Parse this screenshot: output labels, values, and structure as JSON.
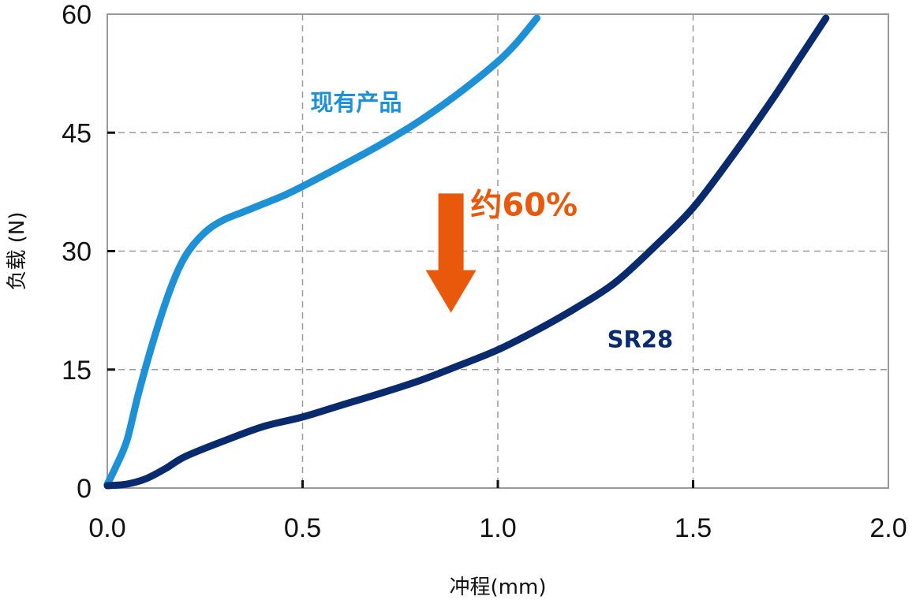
{
  "chart_data": {
    "type": "line",
    "title": "",
    "xlabel": "冲程(mm)",
    "ylabel": "负载 (N)",
    "xlim": [
      0,
      2.0
    ],
    "ylim": [
      0,
      60
    ],
    "x_ticks": [
      0,
      0.5,
      1.0,
      1.5,
      2.0
    ],
    "x_tick_labels": [
      "0.0",
      "0.5",
      "1.0",
      "1.5",
      "2.0"
    ],
    "y_ticks": [
      0,
      15,
      30,
      45,
      60
    ],
    "y_tick_labels": [
      "0",
      "15",
      "30",
      "45",
      "60"
    ],
    "grid": true,
    "series": [
      {
        "name": "现有产品",
        "color": "#1e90d6",
        "points": [
          [
            0,
            0.5
          ],
          [
            0.02,
            2.5
          ],
          [
            0.05,
            6
          ],
          [
            0.08,
            12
          ],
          [
            0.12,
            19
          ],
          [
            0.16,
            25
          ],
          [
            0.19,
            28.5
          ],
          [
            0.22,
            30.8
          ],
          [
            0.26,
            32.8
          ],
          [
            0.3,
            34
          ],
          [
            0.35,
            35
          ],
          [
            0.4,
            36
          ],
          [
            0.45,
            37
          ],
          [
            0.5,
            38.2
          ],
          [
            0.6,
            40.8
          ],
          [
            0.7,
            43.5
          ],
          [
            0.8,
            46.5
          ],
          [
            0.9,
            50
          ],
          [
            1.0,
            54
          ],
          [
            1.05,
            56.5
          ],
          [
            1.1,
            59.5
          ]
        ]
      },
      {
        "name": "SR28",
        "color": "#0a2a6e",
        "points": [
          [
            0,
            0.3
          ],
          [
            0.05,
            0.5
          ],
          [
            0.1,
            1.2
          ],
          [
            0.15,
            2.5
          ],
          [
            0.2,
            4
          ],
          [
            0.3,
            6
          ],
          [
            0.4,
            7.8
          ],
          [
            0.5,
            9
          ],
          [
            0.6,
            10.5
          ],
          [
            0.7,
            12
          ],
          [
            0.8,
            13.6
          ],
          [
            0.9,
            15.5
          ],
          [
            1.0,
            17.5
          ],
          [
            1.1,
            20
          ],
          [
            1.2,
            22.8
          ],
          [
            1.3,
            26
          ],
          [
            1.4,
            30.5
          ],
          [
            1.5,
            35.5
          ],
          [
            1.6,
            42
          ],
          [
            1.7,
            49
          ],
          [
            1.78,
            55
          ],
          [
            1.84,
            59.5
          ]
        ]
      }
    ],
    "annotations": [
      {
        "text": "约60%",
        "color": "#e8590c",
        "x": 0.93,
        "y": 34.5
      },
      {
        "text": "现有产品",
        "color": "#1e90d6",
        "x": 0.52,
        "y": 47.8
      },
      {
        "text": "SR28",
        "color": "#0a2a6e",
        "x": 1.28,
        "y": 17.8
      }
    ],
    "arrow": {
      "color": "#e8590c",
      "x": 0.88,
      "y_start": 37.3,
      "y_end": 22.2,
      "direction": "down"
    }
  }
}
